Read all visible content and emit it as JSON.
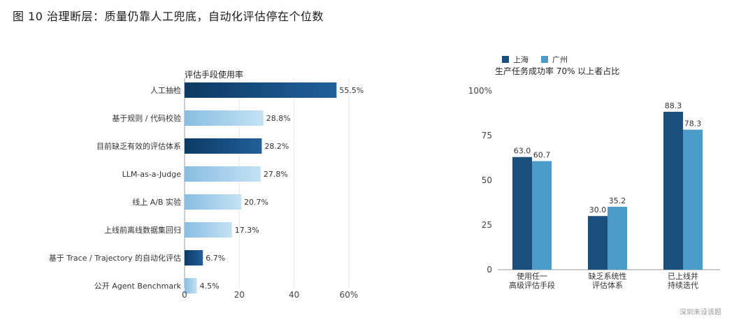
{
  "figure": {
    "title": "图 10   治理断层：质量仍靠人工兜底，自动化评估停在个位数",
    "source": "深圳未设该题"
  },
  "colors": {
    "dark_start": "#0c3a63",
    "dark_end": "#22609a",
    "light_start": "#88bde2",
    "light_end": "#c4e2f3",
    "shanghai": "#1a4f7e",
    "guangzhou": "#4a9bc7",
    "axis": "#999999",
    "grid": "#e6e6e6"
  },
  "chart_data": [
    {
      "type": "bar",
      "orientation": "horizontal",
      "title": "评估手段使用率",
      "categories": [
        "人工抽检",
        "基于规则 / 代码校验",
        "目前缺乏有效的评估体系",
        "LLM-as-a-Judge",
        "线上 A/B 实验",
        "上线前离线数据集回归",
        "基于 Trace / Trajectory 的自动化评估",
        "公开 Agent Benchmark"
      ],
      "values": [
        55.5,
        28.8,
        28.2,
        27.8,
        20.7,
        17.3,
        6.7,
        4.5
      ],
      "value_labels": [
        "55.5%",
        "28.8%",
        "28.2%",
        "27.8%",
        "20.7%",
        "17.3%",
        "6.7%",
        "4.5%"
      ],
      "styles": [
        "dark",
        "light",
        "dark",
        "light",
        "light",
        "light",
        "dark",
        "light"
      ],
      "xlim": [
        0,
        60
      ],
      "xticks": [
        0,
        20,
        40,
        60
      ],
      "xtick_labels": [
        "0",
        "20",
        "40",
        "60%"
      ]
    },
    {
      "type": "bar",
      "title": "生产任务成功率 70% 以上者占比",
      "categories": [
        "使用任一\n高级评估手段",
        "缺乏系统性\n评估体系",
        "已上线并\n持续迭代"
      ],
      "series": [
        {
          "name": "上海",
          "values": [
            63.0,
            30.0,
            88.3
          ],
          "labels": [
            "63.0",
            "30.0",
            "88.3"
          ]
        },
        {
          "name": "广州",
          "values": [
            60.7,
            35.2,
            78.3
          ],
          "labels": [
            "60.7",
            "35.2",
            "78.3"
          ]
        }
      ],
      "ylim": [
        0,
        100
      ],
      "yticks": [
        0,
        25,
        50,
        75,
        100
      ],
      "ytick_labels": [
        "0",
        "25",
        "50",
        "75",
        "100%"
      ],
      "legend": "top-left"
    }
  ]
}
